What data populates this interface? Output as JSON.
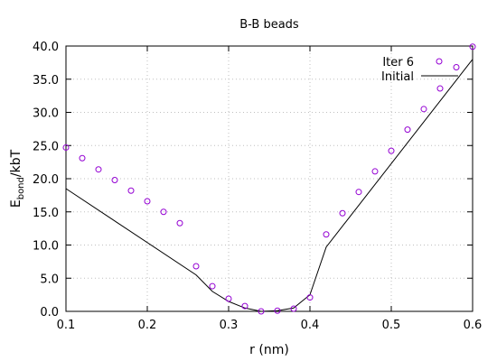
{
  "chart_data": {
    "type": "line",
    "title": "B-B beads",
    "xlabel": "r (nm)",
    "ylabel_main": "E",
    "ylabel_sub": "bond",
    "ylabel_rest": "/kbT",
    "xlim": [
      0.1,
      0.6
    ],
    "ylim": [
      0.0,
      40.0
    ],
    "xticks": [
      0.1,
      0.2,
      0.3,
      0.4,
      0.5,
      0.6
    ],
    "xtick_labels": [
      "0.1",
      "0.2",
      "0.3",
      "0.4",
      "0.5",
      "0.6"
    ],
    "yticks": [
      0,
      5,
      10,
      15,
      20,
      25,
      30,
      35,
      40
    ],
    "ytick_labels": [
      "0.0",
      "5.0",
      "10.0",
      "15.0",
      "20.0",
      "25.0",
      "30.0",
      "35.0",
      "40.0"
    ],
    "grid": true,
    "legend_position": "top-right",
    "colors": {
      "iter": "#9400d3",
      "initial": "#000000"
    },
    "series": [
      {
        "name": "Iter 6",
        "style": "circle-markers",
        "x": [
          0.1,
          0.12,
          0.14,
          0.16,
          0.18,
          0.2,
          0.22,
          0.24,
          0.26,
          0.28,
          0.3,
          0.32,
          0.34,
          0.36,
          0.38,
          0.4,
          0.42,
          0.44,
          0.46,
          0.48,
          0.5,
          0.52,
          0.54,
          0.56,
          0.58,
          0.6
        ],
        "y": [
          24.7,
          23.1,
          21.4,
          19.8,
          18.2,
          16.6,
          15.0,
          13.3,
          6.8,
          3.8,
          1.9,
          0.8,
          0.0,
          0.1,
          0.4,
          2.1,
          11.6,
          14.8,
          18.0,
          21.1,
          24.2,
          27.4,
          30.5,
          33.6,
          36.8,
          39.9
        ]
      },
      {
        "name": "Initial",
        "style": "line",
        "x": [
          0.1,
          0.26,
          0.28,
          0.3,
          0.32,
          0.34,
          0.36,
          0.38,
          0.4,
          0.42,
          0.6
        ],
        "y": [
          18.5,
          5.5,
          3.0,
          1.5,
          0.5,
          0.0,
          0.1,
          0.5,
          2.5,
          9.7,
          38.0
        ]
      }
    ]
  }
}
